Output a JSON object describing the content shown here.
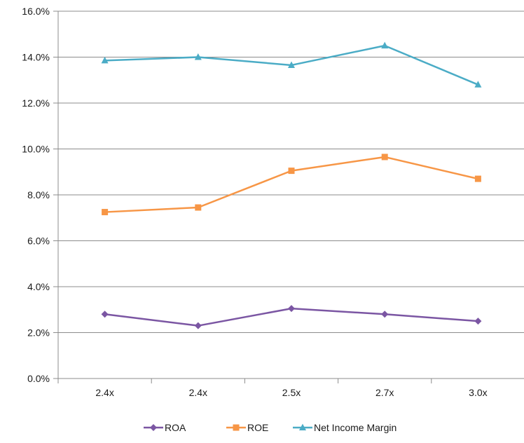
{
  "chart_data": {
    "type": "line",
    "categories": [
      "2.4x",
      "2.4x",
      "2.5x",
      "2.7x",
      "3.0x"
    ],
    "ylim": [
      0,
      16
    ],
    "yticks": [
      "0.0%",
      "2.0%",
      "4.0%",
      "6.0%",
      "8.0%",
      "10.0%",
      "12.0%",
      "14.0%",
      "16.0%"
    ],
    "grid": true,
    "legend_position": "bottom",
    "series": [
      {
        "name": "ROA",
        "color": "#7b56a3",
        "marker": "diamond",
        "values": [
          2.8,
          2.3,
          3.05,
          2.8,
          2.5
        ]
      },
      {
        "name": "ROE",
        "color": "#f79646",
        "marker": "square",
        "values": [
          7.25,
          7.45,
          9.05,
          9.65,
          8.7
        ]
      },
      {
        "name": "Net Income Margin",
        "color": "#4bacc6",
        "marker": "triangle",
        "values": [
          13.85,
          14.0,
          13.65,
          14.5,
          12.8
        ]
      }
    ]
  }
}
